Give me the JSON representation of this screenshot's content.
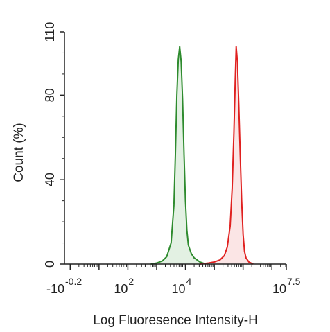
{
  "chart_data": {
    "type": "area",
    "title": "",
    "xlabel": "Log Fluoresence Intensity-H",
    "ylabel": "Count  (%)",
    "xscale": "log",
    "xlim_log10": [
      -0.2,
      7.5
    ],
    "ylim": [
      0,
      110
    ],
    "y_ticks": [
      {
        "value": 0,
        "label": "0"
      },
      {
        "value": 40,
        "label": "40"
      },
      {
        "value": 80,
        "label": "80"
      },
      {
        "value": 110,
        "label": "110"
      }
    ],
    "x_tick_labels": [
      {
        "base": "-10",
        "exp": "-0.2",
        "value_log10": -0.2
      },
      {
        "base": "10",
        "exp": "2",
        "value_log10": 2
      },
      {
        "base": "10",
        "exp": "4",
        "value_log10": 4
      },
      {
        "base": "10",
        "exp": "7.5",
        "value_log10": 7.5
      }
    ],
    "grid": false,
    "legend": "none",
    "series": [
      {
        "color": "#2e8b2e",
        "fill": "#e3f1e3",
        "x_log10": [
          2.8,
          3.0,
          3.2,
          3.35,
          3.5,
          3.6,
          3.65,
          3.7,
          3.75,
          3.8,
          3.85,
          3.9,
          3.95,
          4.0,
          4.05,
          4.1,
          4.2,
          4.3,
          4.4,
          4.5,
          4.6,
          4.7
        ],
        "y": [
          0,
          0.5,
          1.5,
          3.5,
          10,
          28,
          52,
          80,
          97,
          103,
          96,
          78,
          52,
          30,
          16,
          9,
          5,
          3,
          2,
          1,
          0.5,
          0
        ]
      },
      {
        "color": "#e0201f",
        "fill": "#fbe5e5",
        "x_log10": [
          4.5,
          4.8,
          5.0,
          5.2,
          5.35,
          5.45,
          5.55,
          5.62,
          5.68,
          5.73,
          5.76,
          5.8,
          5.85,
          5.9,
          5.95,
          6.0,
          6.05,
          6.1,
          6.2,
          6.35
        ],
        "y": [
          0,
          0.5,
          1,
          2,
          4,
          8,
          18,
          36,
          62,
          88,
          103,
          96,
          76,
          52,
          30,
          14,
          6,
          3,
          1,
          0
        ]
      }
    ]
  }
}
